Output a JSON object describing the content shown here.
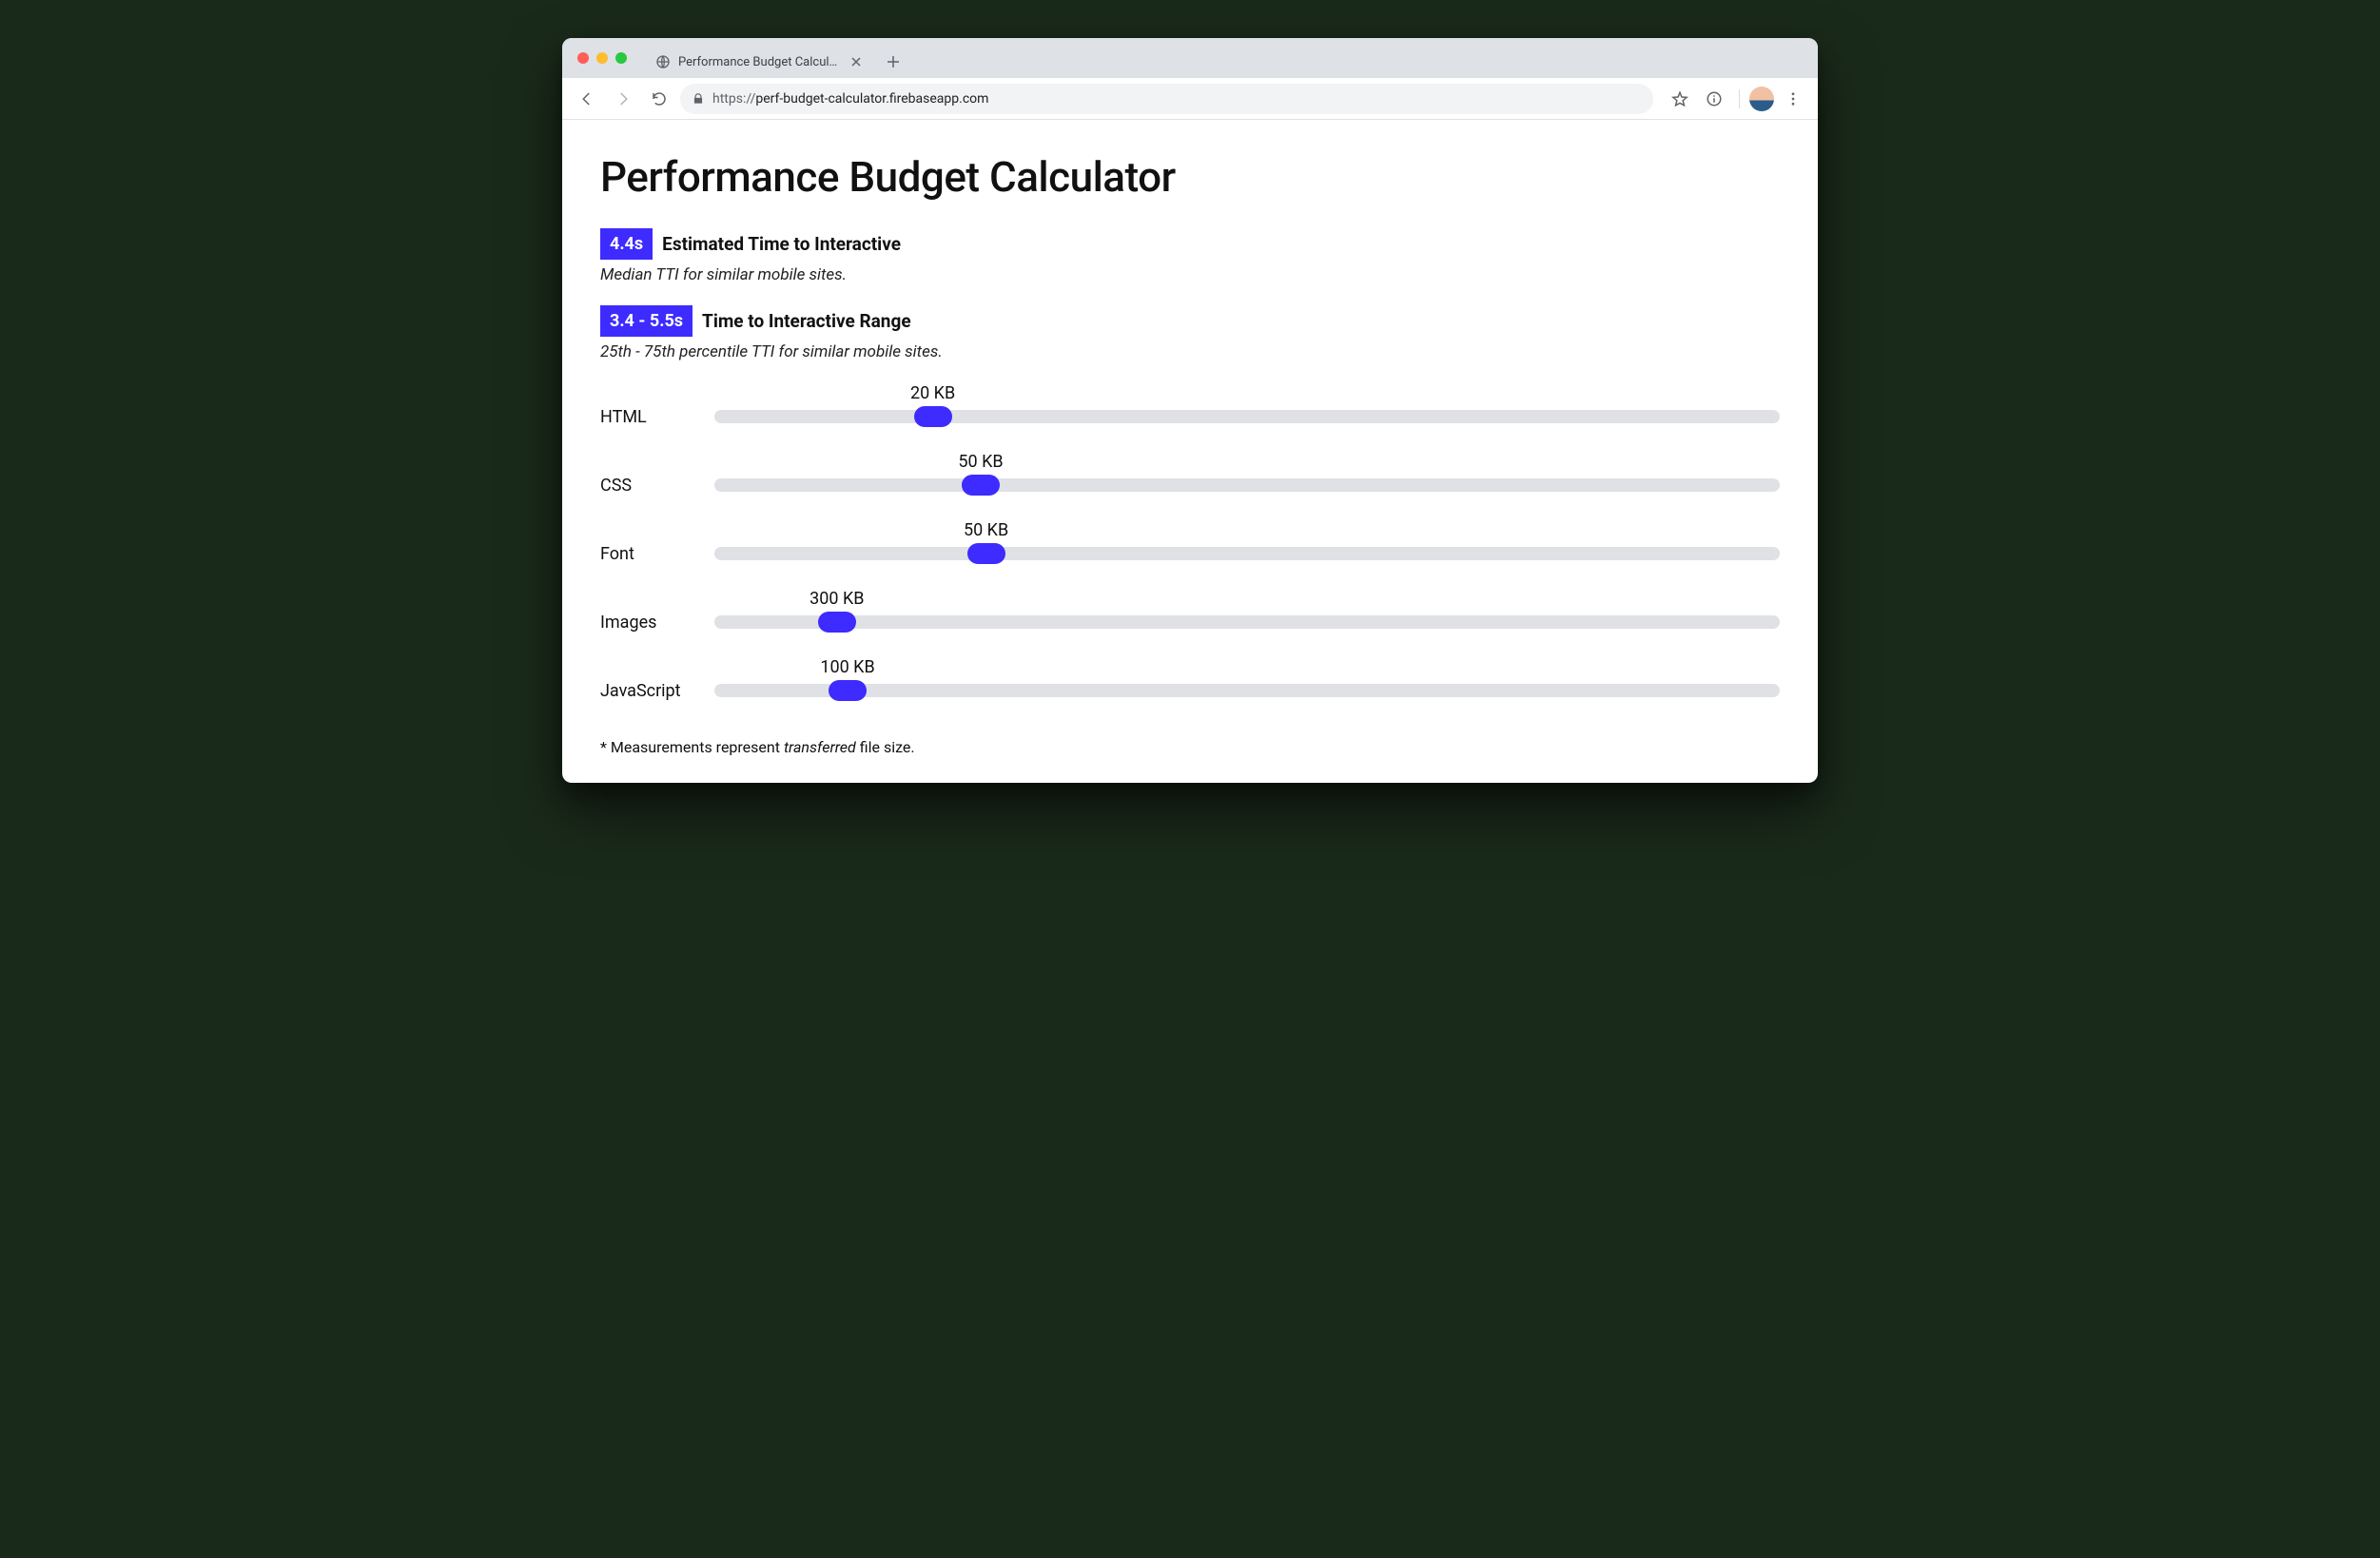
{
  "colors": {
    "accent": "#3d2bff",
    "track": "#dfe1e5",
    "tab_strip": "#dee1e6",
    "omnibox_bg": "#f1f3f4",
    "text": "#111111",
    "muted": "#5f6368"
  },
  "browser": {
    "tab_title": "Performance Budget Calculato",
    "url_prefix": "https://",
    "url_rest": "perf-budget-calculator.firebaseapp.com"
  },
  "page": {
    "title": "Performance Budget Calculator",
    "metrics": [
      {
        "badge": "4.4s",
        "label": "Estimated Time to Interactive",
        "sub": "Median TTI for similar mobile sites."
      },
      {
        "badge": "3.4 - 5.5s",
        "label": "Time to Interactive Range",
        "sub": "25th - 75th percentile TTI for similar mobile sites."
      }
    ],
    "slider_max_kb": 1000,
    "value_unit": "KB",
    "sliders": [
      {
        "label": "HTML",
        "value": 20,
        "thumb_pct": 20.5
      },
      {
        "label": "CSS",
        "value": 50,
        "thumb_pct": 25.0
      },
      {
        "label": "Font",
        "value": 50,
        "thumb_pct": 25.5
      },
      {
        "label": "Images",
        "value": 300,
        "thumb_pct": 11.5
      },
      {
        "label": "JavaScript",
        "value": 100,
        "thumb_pct": 12.5
      }
    ],
    "footnote_prefix": "* Measurements represent ",
    "footnote_em": "transferred",
    "footnote_suffix": " file size."
  }
}
